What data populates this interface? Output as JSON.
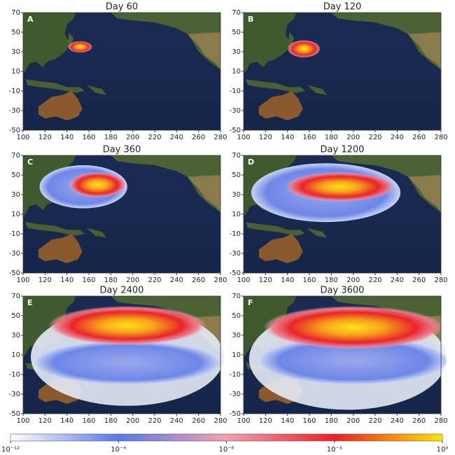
{
  "figure": {
    "panels": [
      {
        "title": "Day 60",
        "letter": "A"
      },
      {
        "title": "Day 120",
        "letter": "B"
      },
      {
        "title": "Day 360",
        "letter": "C"
      },
      {
        "title": "Day 1200",
        "letter": "D"
      },
      {
        "title": "Day 2400",
        "letter": "E"
      },
      {
        "title": "Day 3600",
        "letter": "F"
      }
    ],
    "xlim": [
      100,
      280
    ],
    "ylim": [
      -50,
      70
    ],
    "xticks": [
      100,
      120,
      140,
      160,
      180,
      200,
      220,
      240,
      260,
      280
    ],
    "yticks": [
      -50,
      -30,
      -10,
      10,
      30,
      50,
      70
    ],
    "colorbar": {
      "scale": "log",
      "lim": [
        1e-12,
        1
      ],
      "ticks": [
        {
          "value": 1e-12,
          "label": "10⁻¹²"
        },
        {
          "value": 1e-09,
          "label": "10⁻⁹"
        },
        {
          "value": 1e-06,
          "label": "10⁻⁶"
        },
        {
          "value": 0.001,
          "label": "10⁻³"
        },
        {
          "value": 1,
          "label": "10⁰"
        }
      ],
      "colors": [
        "#ffffff",
        "#5a78e6",
        "#f2a0b0",
        "#e8202a",
        "#ffe600"
      ]
    }
  }
}
